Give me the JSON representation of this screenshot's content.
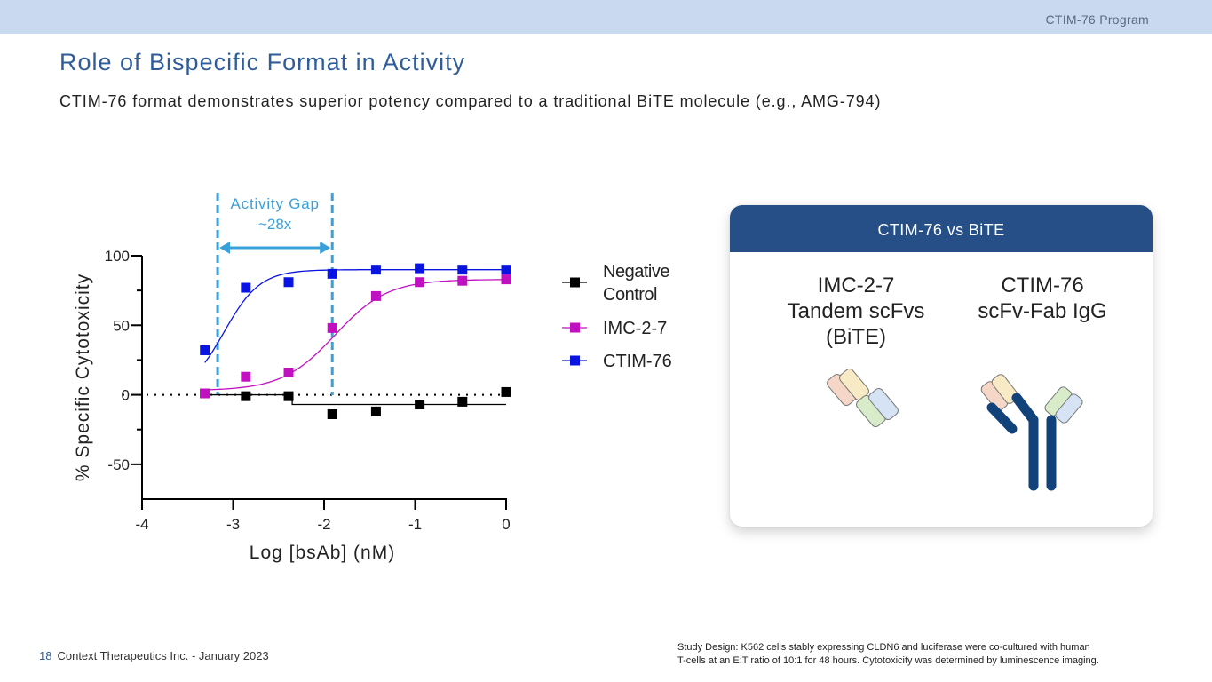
{
  "header": {
    "program": "CTIM-76 Program"
  },
  "title": "Role of Bispecific Format in Activity",
  "subtitle": "CTIM-76 format demonstrates superior potency compared to a traditional BiTE molecule (e.g., AMG-794)",
  "chart_data": {
    "type": "scatter",
    "xlabel": "Log [bsAb] (nM)",
    "ylabel": "% Specific Cytotoxicity",
    "xlim": [
      -4,
      0
    ],
    "ylim": [
      -75,
      100
    ],
    "x_ticks": [
      "-4",
      "-3",
      "-2",
      "-1",
      "0"
    ],
    "y_ticks": [
      "100",
      "50",
      "0",
      "-50"
    ],
    "grid": false,
    "legend": "right",
    "reference_line": {
      "y": 0,
      "style": "dotted"
    },
    "annotation": {
      "line1": "Activity Gap",
      "line2": "~28x",
      "x_from": -3.17,
      "x_to": -1.91
    },
    "series": [
      {
        "name": "Negative Control",
        "legend_lines": [
          "Negative",
          "Control"
        ],
        "color": "#000000",
        "x": [
          -3.31,
          -2.86,
          -2.39,
          -1.91,
          -1.43,
          -0.95,
          -0.48,
          0.0
        ],
        "y": [
          1,
          -1,
          -1,
          -14,
          -12,
          -7,
          -5,
          2
        ],
        "fit": "step"
      },
      {
        "name": "IMC-2-7",
        "color": "#c010c0",
        "x": [
          -3.31,
          -2.86,
          -2.39,
          -1.91,
          -1.43,
          -0.95,
          -0.48,
          0.0
        ],
        "y": [
          1,
          13,
          16,
          48,
          71,
          81,
          82,
          83
        ],
        "fit": "sigmoid"
      },
      {
        "name": "CTIM-76",
        "color": "#0a14e0",
        "x": [
          -3.31,
          -2.86,
          -2.39,
          -1.91,
          -1.43,
          -0.95,
          -0.48,
          0.0
        ],
        "y": [
          32,
          77,
          81,
          87,
          90,
          91,
          90,
          90
        ],
        "fit": "sigmoid"
      }
    ]
  },
  "card": {
    "header": "CTIM-76 vs BiTE",
    "left_lines": [
      "IMC-2-7",
      "Tandem scFvs",
      "(BiTE)"
    ],
    "right_lines": [
      "CTIM-76",
      "scFv-Fab IgG"
    ]
  },
  "footer": {
    "page_number": "18",
    "company": "Context Therapeutics Inc. - January 2023",
    "note_lines": [
      "Study Design: K562 cells stably expressing CLDN6 and luciferase were co-cultured with human",
      "T-cells at an E:T ratio of 10:1 for 48 hours. Cytotoxicity was determined by luminescence imaging."
    ]
  }
}
